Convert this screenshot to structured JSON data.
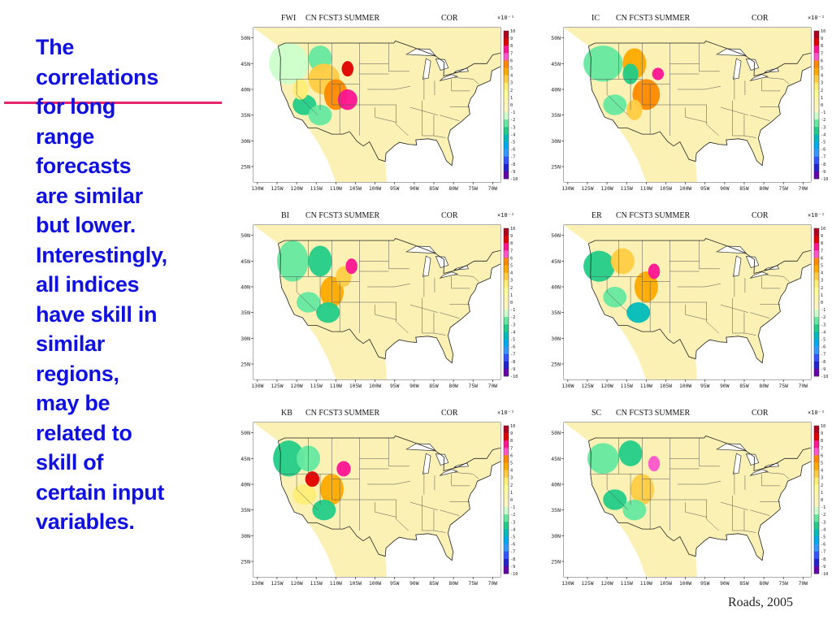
{
  "slide": {
    "body_lines": [
      "The",
      "correlations",
      "for long",
      "range",
      "forecasts",
      "are similar",
      "but lower.",
      "Interestingly,",
      "all indices",
      "have skill in",
      "similar",
      "regions,",
      "may be",
      "related to",
      "skill of",
      "certain input",
      "variables."
    ],
    "citation": "Roads, 2005",
    "text_color": "#1010e0",
    "accent_color": "#e8246a"
  },
  "maps": [
    {
      "index": "FWI",
      "title": "CN FCST3 SUMMER",
      "stat": "COR"
    },
    {
      "index": "IC",
      "title": "CN FCST3 SUMMER",
      "stat": "COR"
    },
    {
      "index": "BI",
      "title": "CN FCST3 SUMMER",
      "stat": "COR"
    },
    {
      "index": "ER",
      "title": "CN FCST3 SUMMER",
      "stat": "COR"
    },
    {
      "index": "KB",
      "title": "CN FCST3 SUMMER",
      "stat": "COR"
    },
    {
      "index": "SC",
      "title": "CN FCST3 SUMMER",
      "stat": "COR"
    }
  ],
  "axes": {
    "lat_labels": [
      "50N",
      "45N",
      "40N",
      "35N",
      "30N",
      "25N"
    ],
    "lon_labels": [
      "130W",
      "125W",
      "120W",
      "115W",
      "110W",
      "105W",
      "100W",
      "95W",
      "90W",
      "85W",
      "80W",
      "75W",
      "70W"
    ]
  },
  "colorbar": {
    "scale_label": "×10⁻¹",
    "ticks": [
      "10",
      "9",
      "8",
      "7",
      "6",
      "5",
      "4",
      "3",
      "2",
      "1",
      "0",
      "-1",
      "-2",
      "-3",
      "-4",
      "-5",
      "-6",
      "-7",
      "-8",
      "-9",
      "-10"
    ],
    "colors": [
      "#b00020",
      "#e00000",
      "#ff1493",
      "#ff55cc",
      "#ff8800",
      "#ffaa00",
      "#ffcc44",
      "#ffee77",
      "#ffff99",
      "#fff6b0",
      "#fff6c0",
      "#ccffcc",
      "#66e8a0",
      "#22cc88",
      "#00bbbb",
      "#00aaee",
      "#3399ff",
      "#3355ff",
      "#2222cc",
      "#6600aa"
    ],
    "land_color": "#fbf1b4",
    "outside_color": "#ffffff"
  }
}
